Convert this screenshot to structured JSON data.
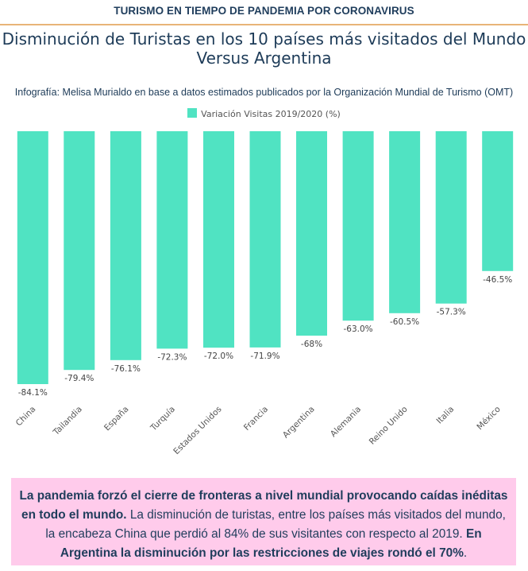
{
  "header": {
    "kicker": "TURISMO EN TIEMPO DE PANDEMIA POR CORONAVIRUS",
    "title": "Disminución de Turistas en los 10 países más visitados del Mundo Versus Argentina",
    "subtitle": "Infografía: Melisa Murialdo en base a datos estimados publicados por la Organización Mundial de Turismo (OMT)"
  },
  "colors": {
    "bar": "#50e3c2",
    "rule": "#e8b478",
    "callout_bg": "#ffcbeb",
    "text": "#1f3d5c"
  },
  "chart_data": {
    "type": "bar",
    "title": "",
    "xlabel": "",
    "ylabel": "",
    "categories": [
      "China",
      "Tailandia",
      "España",
      "Turquía",
      "Estados Unidos",
      "Francia",
      "Argentina",
      "Alemania",
      "Reino Unido",
      "Italia",
      "México"
    ],
    "series": [
      {
        "name": "Variación Visitas 2019/2020 (%)",
        "values": [
          -84.1,
          -79.4,
          -76.1,
          -72.3,
          -72.0,
          -71.9,
          -68,
          -63.0,
          -60.5,
          -57.3,
          -46.5
        ],
        "labels": [
          "-84.1%",
          "-79.4%",
          "-76.1%",
          "-72.3%",
          "-72.0%",
          "-71.9%",
          "-68%",
          "-63.0%",
          "-60.5%",
          "-57.3%",
          "-46.5%"
        ]
      }
    ],
    "ylim": [
      -84.1,
      0
    ],
    "grid": false,
    "legend": "top-center"
  },
  "callout": {
    "p1_bold": "La pandemia forzó el cierre de fronteras a nivel mundial provocando caídas inéditas en todo el mundo.",
    "p2": " La disminución de turistas, entre los países más visitados del mundo, la encabeza China que perdió al 84% de sus visitantes con respecto al 2019. ",
    "p3_bold": "En Argentina la disminución por las restricciones de viajes rondó el 70%",
    "p4": "."
  }
}
